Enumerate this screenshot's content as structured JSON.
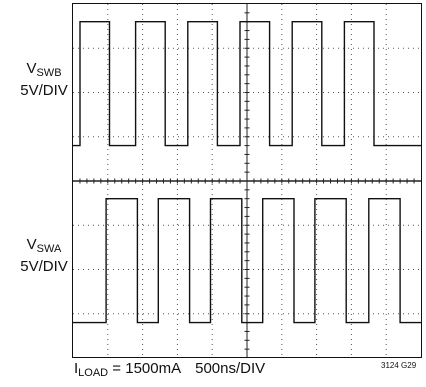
{
  "chart_data": {
    "type": "line",
    "grid": true,
    "grid_divisions": {
      "x": 10,
      "y": 8
    },
    "channels": [
      {
        "symbol": "V",
        "subscript": "SWB",
        "scale": "5V/DIV",
        "color": "#111111",
        "high_level_div": 7.6,
        "low_level_div": 4.8,
        "rising_edges_div": [
          0.2,
          1.8,
          3.3,
          4.8,
          6.3,
          7.8
        ],
        "pulse_width_div": 0.85,
        "points": [
          [
            0,
            4.8
          ],
          [
            0.2,
            4.8
          ],
          [
            0.2,
            7.6
          ],
          [
            1.05,
            7.6
          ],
          [
            1.05,
            4.8
          ],
          [
            1.8,
            4.8
          ],
          [
            1.8,
            7.6
          ],
          [
            2.65,
            7.6
          ],
          [
            2.65,
            4.8
          ],
          [
            3.3,
            4.8
          ],
          [
            3.3,
            7.6
          ],
          [
            4.15,
            7.6
          ],
          [
            4.15,
            4.8
          ],
          [
            4.8,
            4.8
          ],
          [
            4.8,
            7.6
          ],
          [
            5.65,
            7.6
          ],
          [
            5.65,
            4.8
          ],
          [
            6.3,
            4.8
          ],
          [
            6.3,
            7.6
          ],
          [
            7.15,
            7.6
          ],
          [
            7.15,
            4.8
          ],
          [
            7.8,
            4.8
          ],
          [
            7.8,
            7.6
          ],
          [
            8.65,
            7.6
          ],
          [
            8.65,
            4.8
          ],
          [
            10,
            4.8
          ]
        ]
      },
      {
        "symbol": "V",
        "subscript": "SWA",
        "scale": "5V/DIV",
        "color": "#111111",
        "high_level_div": 3.6,
        "low_level_div": 0.8,
        "rising_edges_div": [
          0.95,
          2.45,
          3.95,
          5.45,
          6.95,
          8.5
        ],
        "pulse_width_div": 0.9,
        "points": [
          [
            0,
            0.8
          ],
          [
            0.95,
            0.8
          ],
          [
            0.95,
            3.6
          ],
          [
            1.85,
            3.6
          ],
          [
            1.85,
            0.8
          ],
          [
            2.45,
            0.8
          ],
          [
            2.45,
            3.6
          ],
          [
            3.35,
            3.6
          ],
          [
            3.35,
            0.8
          ],
          [
            3.95,
            0.8
          ],
          [
            3.95,
            3.6
          ],
          [
            4.85,
            3.6
          ],
          [
            4.85,
            0.8
          ],
          [
            5.45,
            0.8
          ],
          [
            5.45,
            3.6
          ],
          [
            6.35,
            3.6
          ],
          [
            6.35,
            0.8
          ],
          [
            6.95,
            0.8
          ],
          [
            6.95,
            3.6
          ],
          [
            7.85,
            3.6
          ],
          [
            7.85,
            0.8
          ],
          [
            8.5,
            0.8
          ],
          [
            8.5,
            3.6
          ],
          [
            9.4,
            3.6
          ],
          [
            9.4,
            0.8
          ],
          [
            10,
            0.8
          ]
        ]
      }
    ],
    "footer": {
      "load_symbol": "I",
      "load_subscript": "LOAD",
      "load_value": " = 1500mA",
      "timebase": "500ns/DIV"
    },
    "figure_id": "3124 G29"
  }
}
